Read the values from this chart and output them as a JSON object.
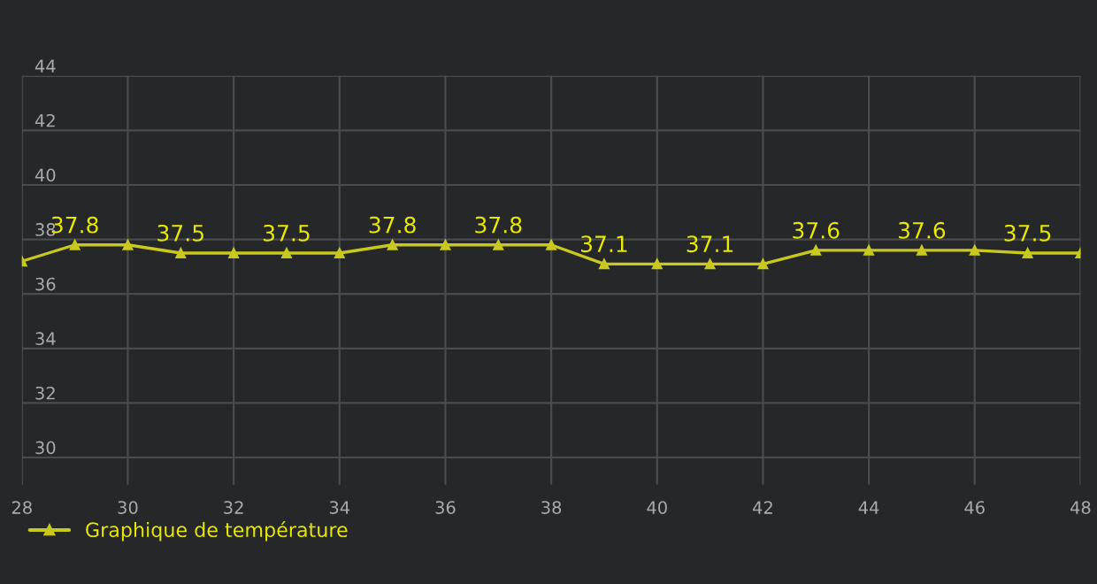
{
  "chart_data": {
    "type": "line",
    "x": [
      28,
      29,
      30,
      31,
      32,
      33,
      34,
      35,
      36,
      37,
      38,
      39,
      40,
      41,
      42,
      43,
      44,
      45,
      46,
      47,
      48
    ],
    "series": [
      {
        "name": "Graphique de température",
        "color": "#c8c81e",
        "values": [
          37.2,
          37.8,
          37.8,
          37.5,
          37.5,
          37.5,
          37.5,
          37.8,
          37.8,
          37.8,
          37.8,
          37.1,
          37.1,
          37.1,
          37.1,
          37.6,
          37.6,
          37.6,
          37.6,
          37.5,
          37.5
        ],
        "value_labels": [
          null,
          "37.8",
          null,
          "37.5",
          null,
          "37.5",
          null,
          "37.8",
          null,
          "37.8",
          null,
          "37.1",
          null,
          "37.1",
          null,
          "37.6",
          null,
          "37.6",
          null,
          "37.5",
          null
        ]
      }
    ],
    "xlim": [
      28,
      48
    ],
    "xticks": [
      28,
      30,
      32,
      34,
      36,
      38,
      40,
      42,
      44,
      46,
      48
    ],
    "ylim": [
      29,
      44
    ],
    "yticks": [
      30,
      32,
      34,
      36,
      38,
      40,
      42,
      44
    ],
    "grid": true,
    "legend": "bottom left",
    "marker": "triangle",
    "line_style": "solid"
  }
}
